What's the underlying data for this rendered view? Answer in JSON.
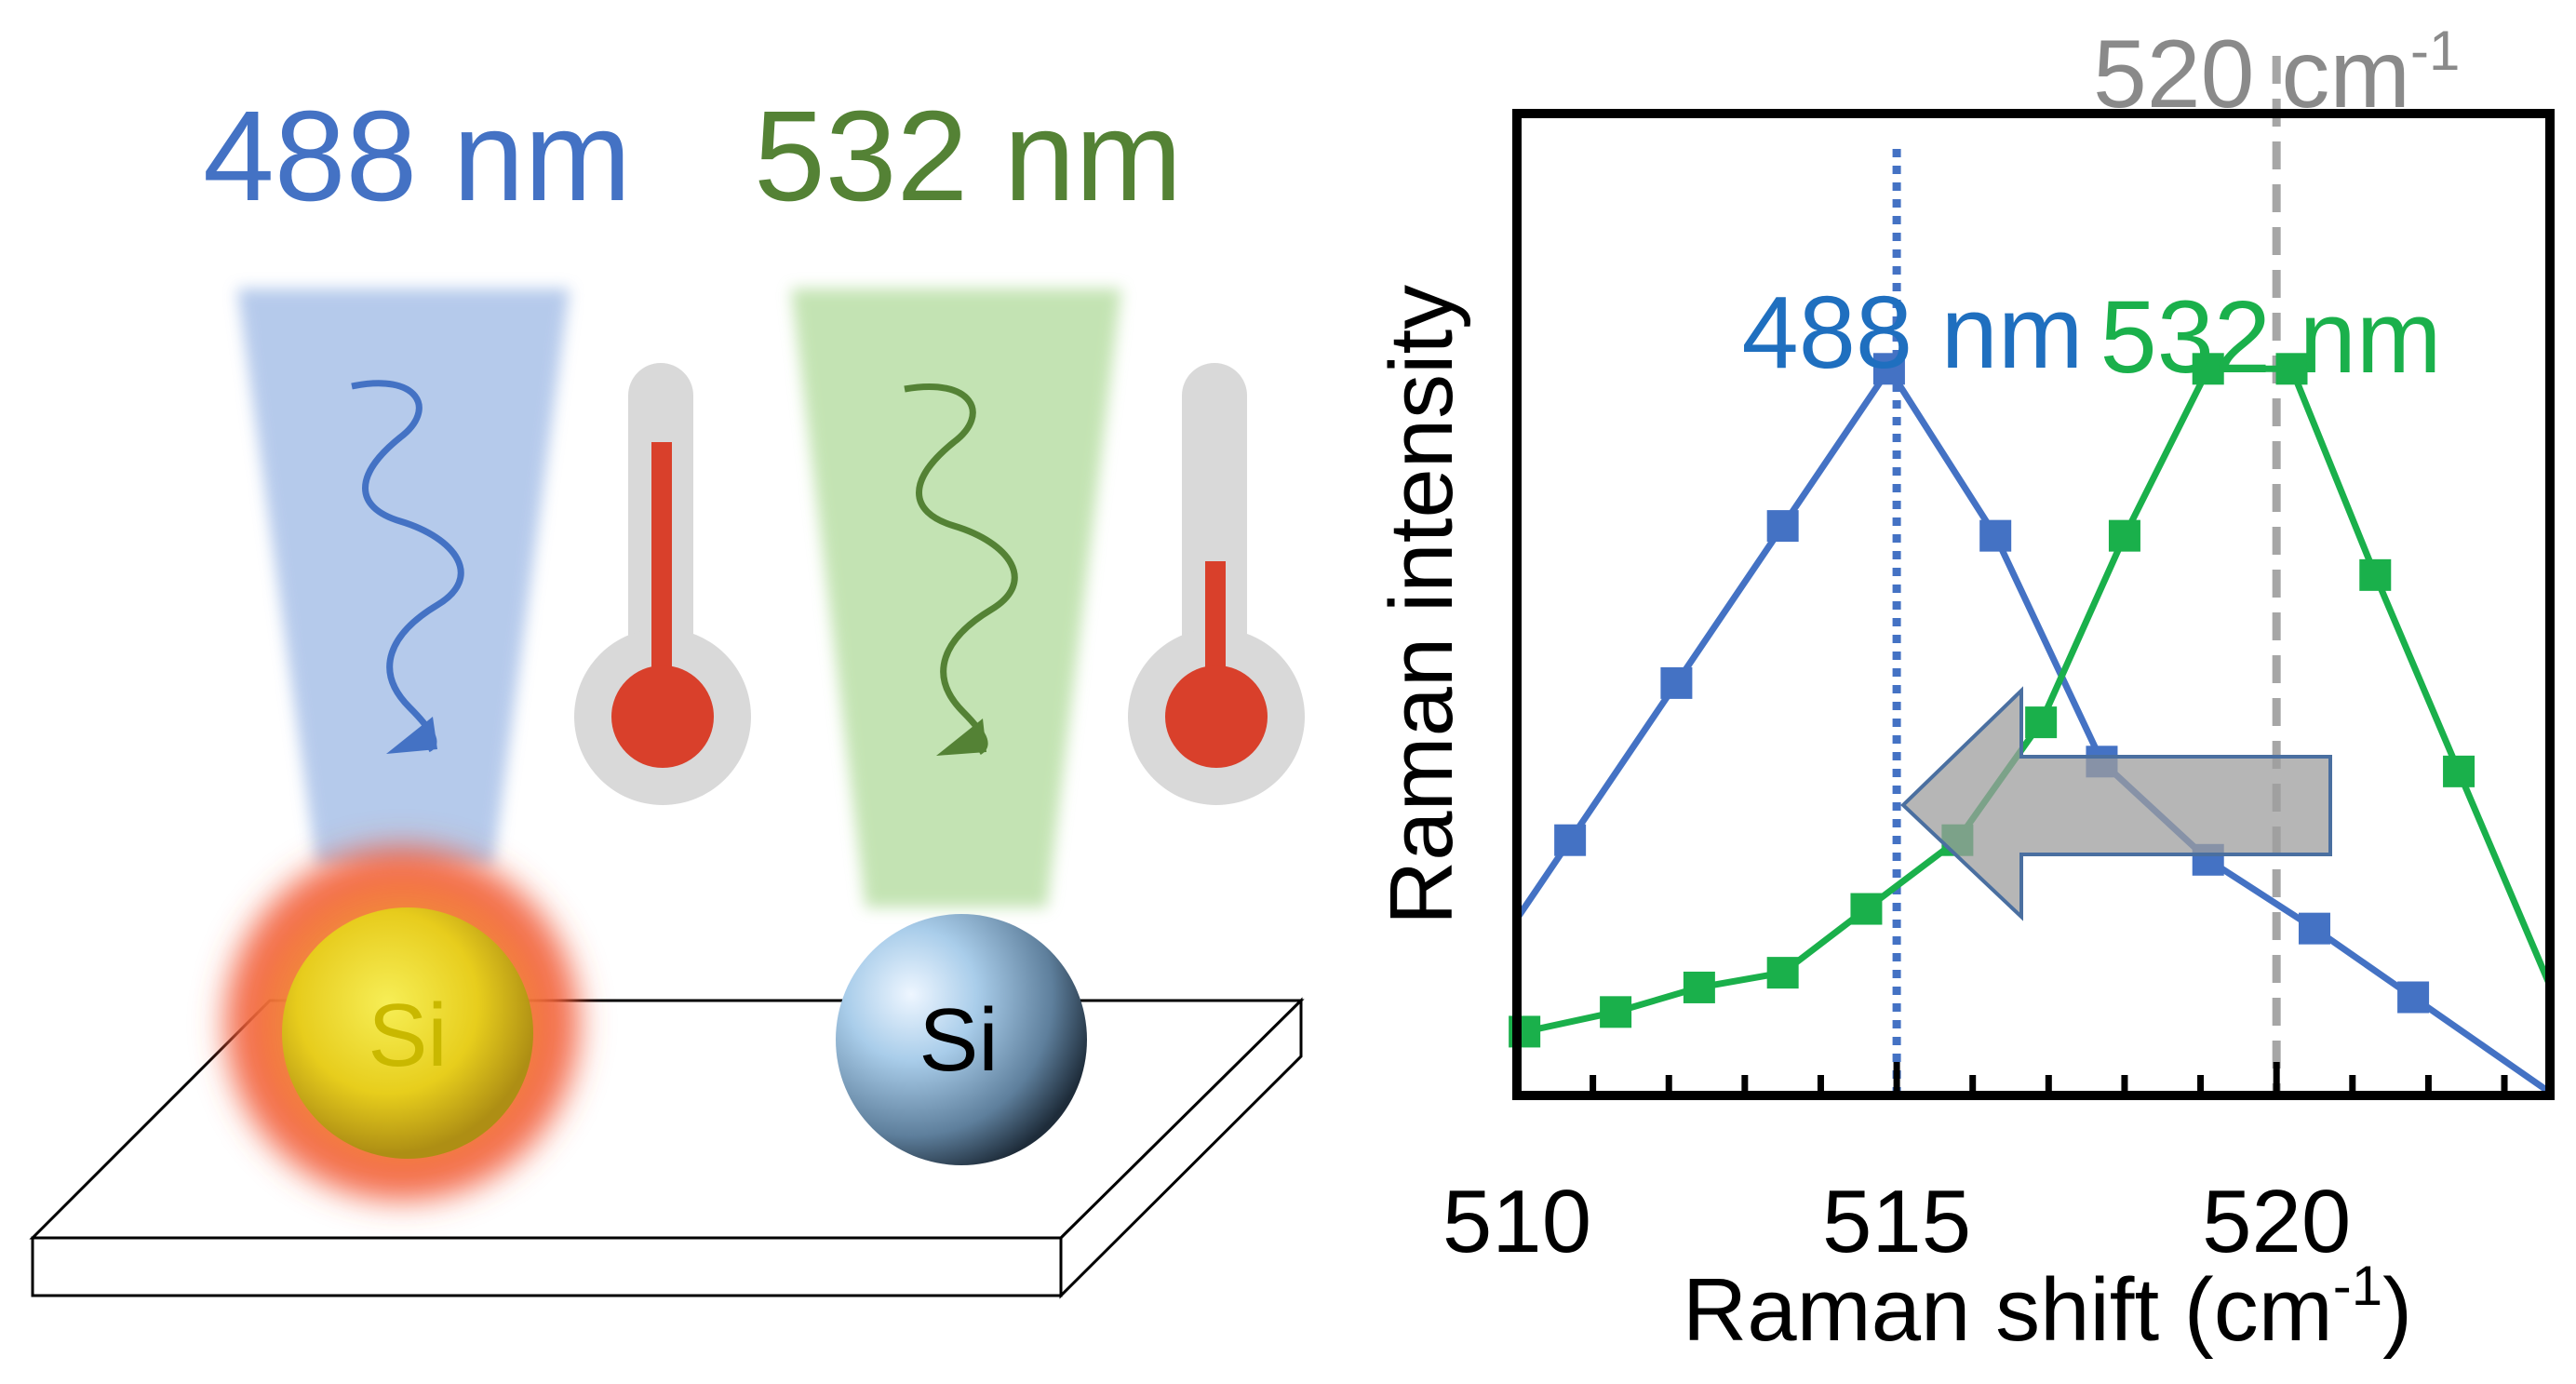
{
  "illustration": {
    "laser_labels": [
      "488 nm",
      "532 nm"
    ],
    "particle_label": "Si",
    "colors": {
      "blue": "#4472c4",
      "green": "#548235",
      "red": "#d9402b",
      "gray": "#d9d9d9"
    }
  },
  "chart_data": {
    "type": "line",
    "xlabel": "Raman shift (cm",
    "xlabel_sup": "-1",
    "xlabel_end": ")",
    "ylabel": "Raman intensity",
    "xlim": [
      510,
      523.6
    ],
    "ylim": [
      0,
      1
    ],
    "x_ticks": [
      "510",
      "515",
      "520"
    ],
    "x_tick_values": [
      510,
      515,
      520
    ],
    "minor_ticks": [
      511,
      512,
      513,
      514,
      516,
      517,
      518,
      519,
      521,
      522,
      523
    ],
    "grid": false,
    "reference_lines": [
      {
        "x": 515,
        "style": "dotted",
        "color": "#4472c4"
      },
      {
        "x": 520,
        "style": "dashed",
        "color": "#a6a6a6",
        "label": "520 cm",
        "label_sup": "-1"
      }
    ],
    "series": [
      {
        "name": "488 nm",
        "color": "#4472c4",
        "x": [
          510.7,
          512.1,
          513.5,
          514.9,
          516.3,
          517.7,
          519.1,
          520.5,
          521.8
        ],
        "y": [
          0.26,
          0.42,
          0.58,
          0.74,
          0.57,
          0.34,
          0.24,
          0.17,
          0.1
        ]
      },
      {
        "name": "532 nm",
        "color": "#1ab04b",
        "x": [
          510.1,
          511.3,
          512.4,
          513.5,
          514.6,
          515.8,
          516.9,
          518.0,
          519.1,
          520.2,
          521.3,
          522.4
        ],
        "y": [
          0.065,
          0.085,
          0.11,
          0.125,
          0.19,
          0.26,
          0.38,
          0.57,
          0.74,
          0.74,
          0.53,
          0.33
        ]
      }
    ]
  }
}
